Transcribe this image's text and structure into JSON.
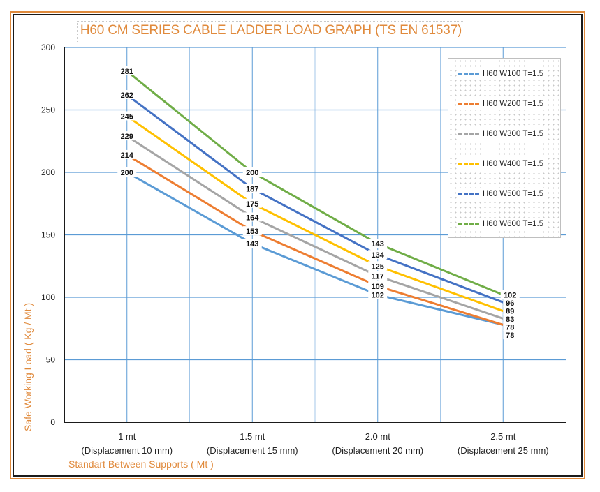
{
  "chart_data": {
    "type": "line",
    "title": "H60 CM SERIES CABLE LADDER LOAD GRAPH (TS EN 61537)",
    "xlabel": "Standart Between Supports ( Mt )",
    "ylabel": "Safe Working Load ( Kg / Mt )",
    "categories": [
      [
        "1 mt",
        "(Displacement 10 mm)"
      ],
      [
        "1.5 mt",
        "(Displacement 15 mm)"
      ],
      [
        "2.0 mt",
        "(Displacement 20 mm)"
      ],
      [
        "2.5 mt",
        "(Displacement 25 mm)"
      ]
    ],
    "ylim": [
      0,
      300
    ],
    "yticks": [
      0,
      50,
      100,
      150,
      200,
      250,
      300
    ],
    "grid": true,
    "legend_position": "top-right",
    "series": [
      {
        "name": "H60 W100 T=1.5",
        "color": "#5b9bd5",
        "values": [
          200,
          143,
          102,
          78
        ]
      },
      {
        "name": "H60 W200 T=1.5",
        "color": "#ed7d31",
        "values": [
          214,
          153,
          109,
          78
        ]
      },
      {
        "name": "H60 W300 T=1.5",
        "color": "#a5a5a5",
        "values": [
          229,
          164,
          117,
          83
        ]
      },
      {
        "name": "H60 W400 T=1.5",
        "color": "#ffc000",
        "values": [
          245,
          175,
          125,
          89
        ]
      },
      {
        "name": "H60 W500 T=1.5",
        "color": "#4472c4",
        "values": [
          262,
          187,
          134,
          96
        ]
      },
      {
        "name": "H60 W600 T=1.5",
        "color": "#70ad47",
        "values": [
          281,
          200,
          143,
          102
        ]
      }
    ]
  }
}
